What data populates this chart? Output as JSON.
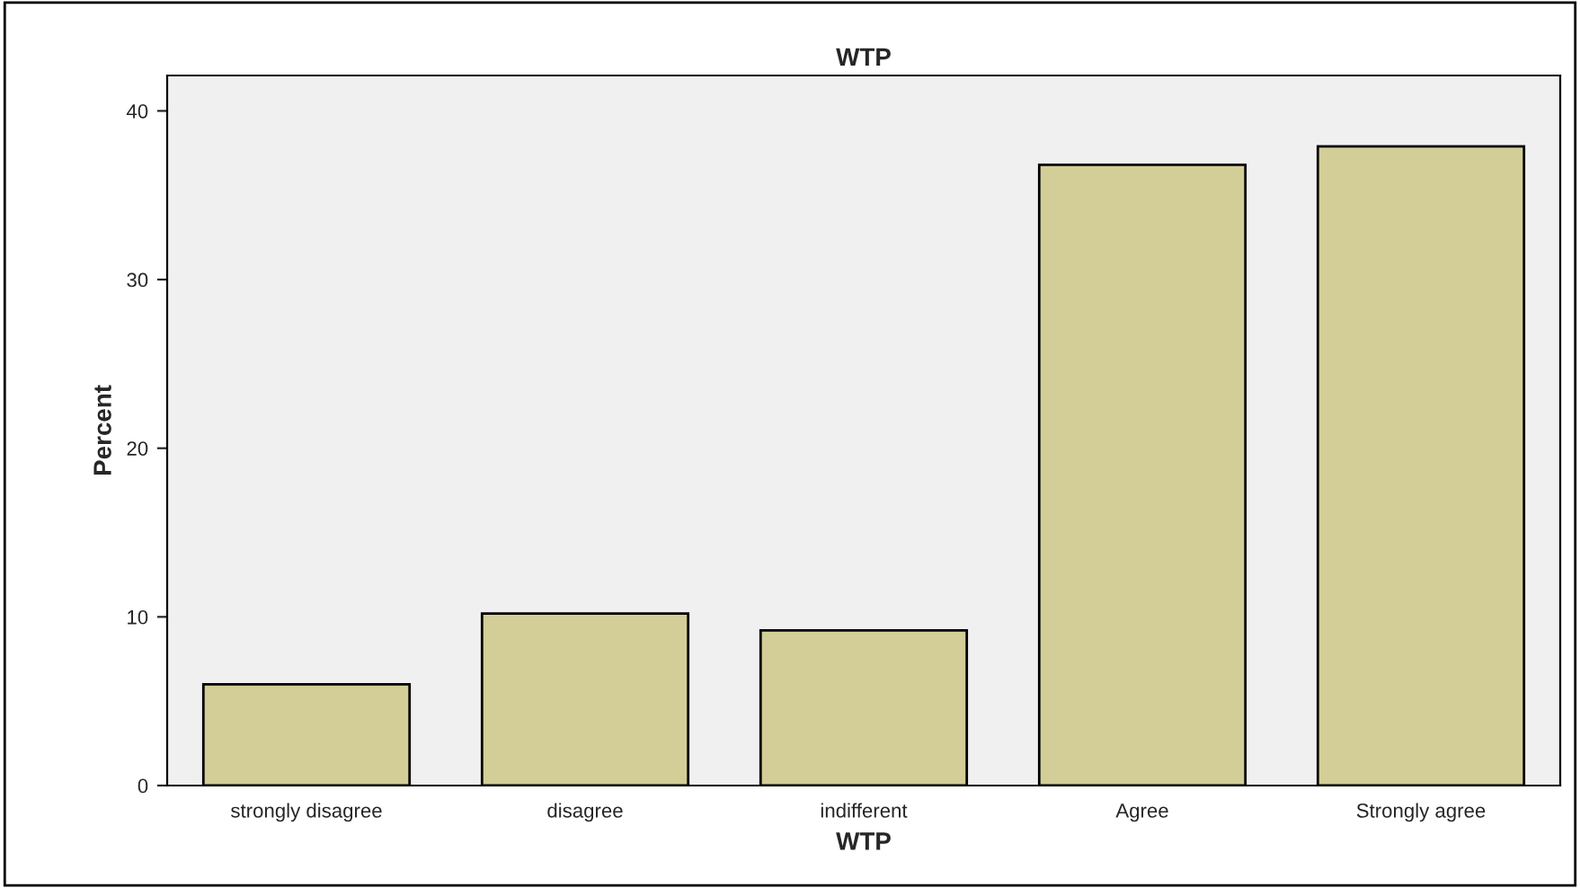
{
  "chart_data": {
    "type": "bar",
    "title": "WTP",
    "xlabel": "WTP",
    "ylabel": "Percent",
    "categories": [
      "strongly disagree",
      "disagree",
      "indifferent",
      "Agree",
      "Strongly agree"
    ],
    "values": [
      6.0,
      10.2,
      9.2,
      36.8,
      37.9
    ],
    "color": "#d3ce97",
    "ylim": [
      0,
      42.1
    ],
    "yticks": [
      0,
      10,
      20,
      30,
      40
    ],
    "grid": false
  }
}
